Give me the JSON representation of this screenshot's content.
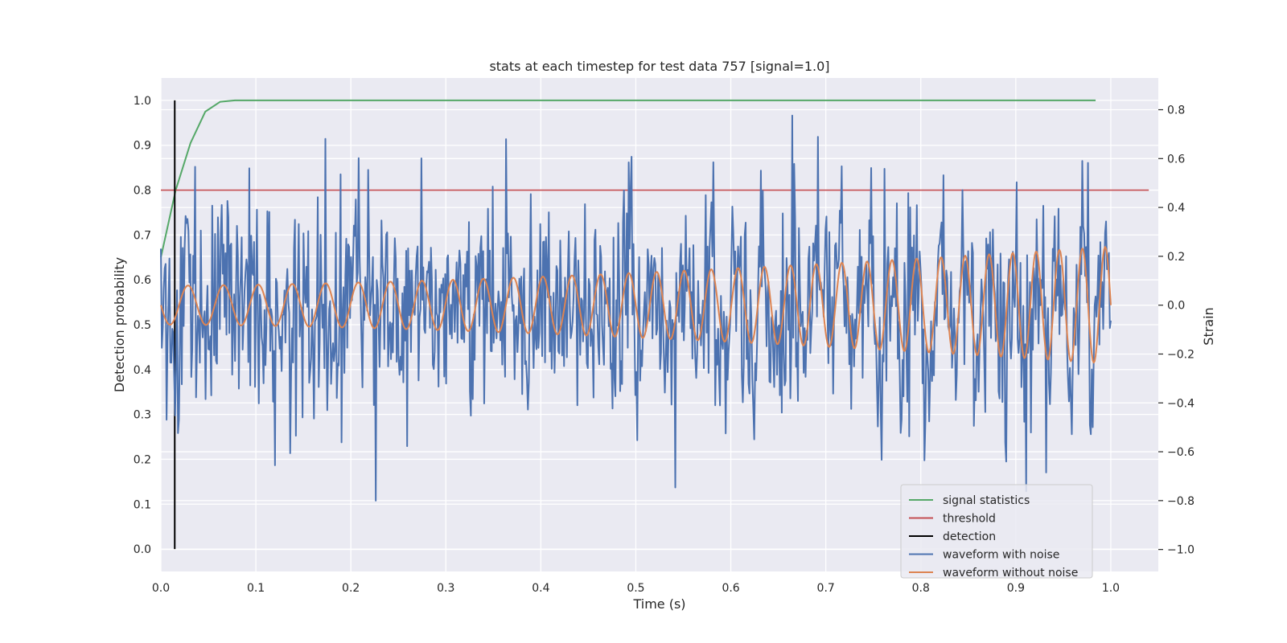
{
  "chart_data": {
    "type": "line",
    "title": "stats at each timestep for test data 757 [signal=1.0]",
    "xlabel": "Time (s)",
    "ylabel_left": "Detection probability",
    "ylabel_right": "Strain",
    "xlim": [
      0.0,
      1.05
    ],
    "ylim_left": [
      -0.05,
      1.05
    ],
    "ylim_right": [
      -1.09,
      0.93
    ],
    "x_ticks": [
      0.0,
      0.1,
      0.2,
      0.3,
      0.4,
      0.5,
      0.6,
      0.7,
      0.8,
      0.9,
      1.0
    ],
    "y_ticks_left": [
      0.0,
      0.1,
      0.2,
      0.3,
      0.4,
      0.5,
      0.6,
      0.7,
      0.8,
      0.9,
      1.0
    ],
    "y_ticks_right": [
      -1.0,
      -0.8,
      -0.6,
      -0.4,
      -0.2,
      0.0,
      0.2,
      0.4,
      0.6,
      0.8
    ],
    "grid": true,
    "legend_position": "bottom-right",
    "colors": {
      "background": "#eaeaf2",
      "grid": "#ffffff",
      "signal": "#55a868",
      "threshold": "#c44e52",
      "detection": "#000000",
      "noisy": "#4c72b0",
      "clean": "#dd8452"
    },
    "series": [
      {
        "name": "signal statistics",
        "axis": "left",
        "x": [
          0.0,
          0.0156,
          0.0312,
          0.0468,
          0.0625,
          0.078,
          0.1,
          0.2,
          0.4,
          0.6,
          0.8,
          0.984
        ],
        "y": [
          0.65,
          0.8,
          0.905,
          0.975,
          0.997,
          1.0,
          1.0,
          1.0,
          1.0,
          1.0,
          1.0,
          1.0
        ]
      },
      {
        "name": "threshold",
        "axis": "left",
        "x": [
          0.0,
          1.04
        ],
        "y": [
          0.8,
          0.8
        ]
      },
      {
        "name": "detection",
        "axis": "left",
        "x": [
          0.0146,
          0.0146
        ],
        "y": [
          0.0,
          1.0
        ]
      },
      {
        "name": "waveform with noise",
        "axis": "right",
        "n_points": 1000,
        "x_range": [
          0.0,
          1.0
        ],
        "approx_noise_std": 0.22,
        "approx_min": -0.8,
        "approx_max": 0.85
      },
      {
        "name": "waveform without noise",
        "axis": "right",
        "n_points": 1000,
        "x_range": [
          0.0,
          1.0
        ],
        "approx_start_frequency_hz": 26,
        "approx_end_frequency_hz": 42,
        "approx_start_amplitude": 0.08,
        "approx_end_amplitude": 0.24
      }
    ]
  }
}
